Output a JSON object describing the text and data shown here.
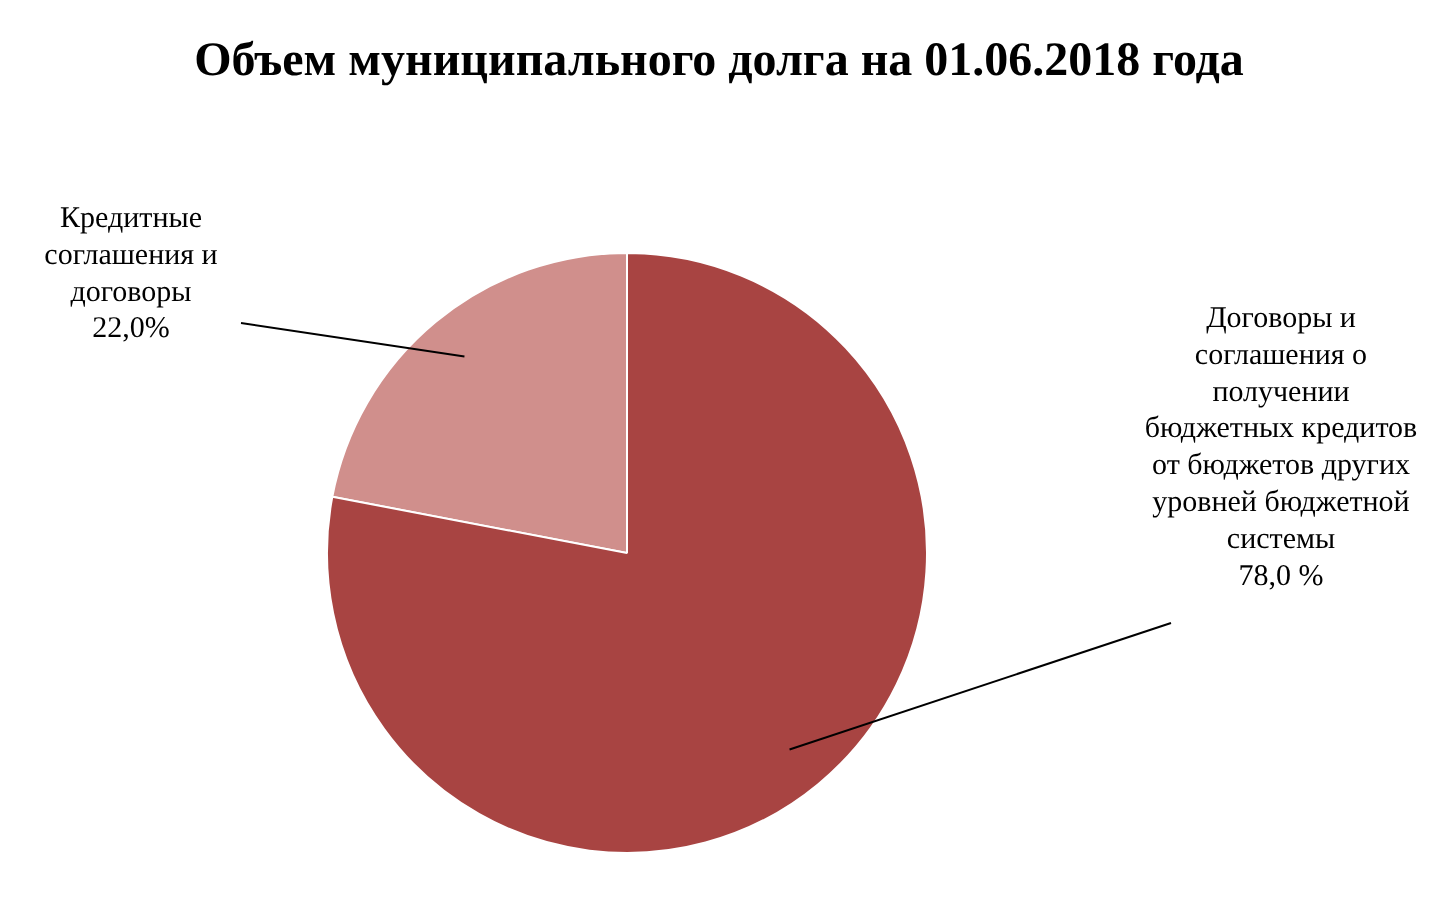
{
  "chart_data": {
    "type": "pie",
    "title": "Объем муниципального долга на 01.06.2018 года",
    "categories": [
      "Кредитные соглашения и договоры",
      "Договоры и соглашения о получении бюджетных кредитов от бюджетов других уровней бюджетной системы"
    ],
    "values": [
      22.0,
      78.0
    ],
    "colors": [
      "#d08f8c",
      "#a84442"
    ],
    "value_labels": [
      "22,0%",
      "78,0 %"
    ]
  }
}
